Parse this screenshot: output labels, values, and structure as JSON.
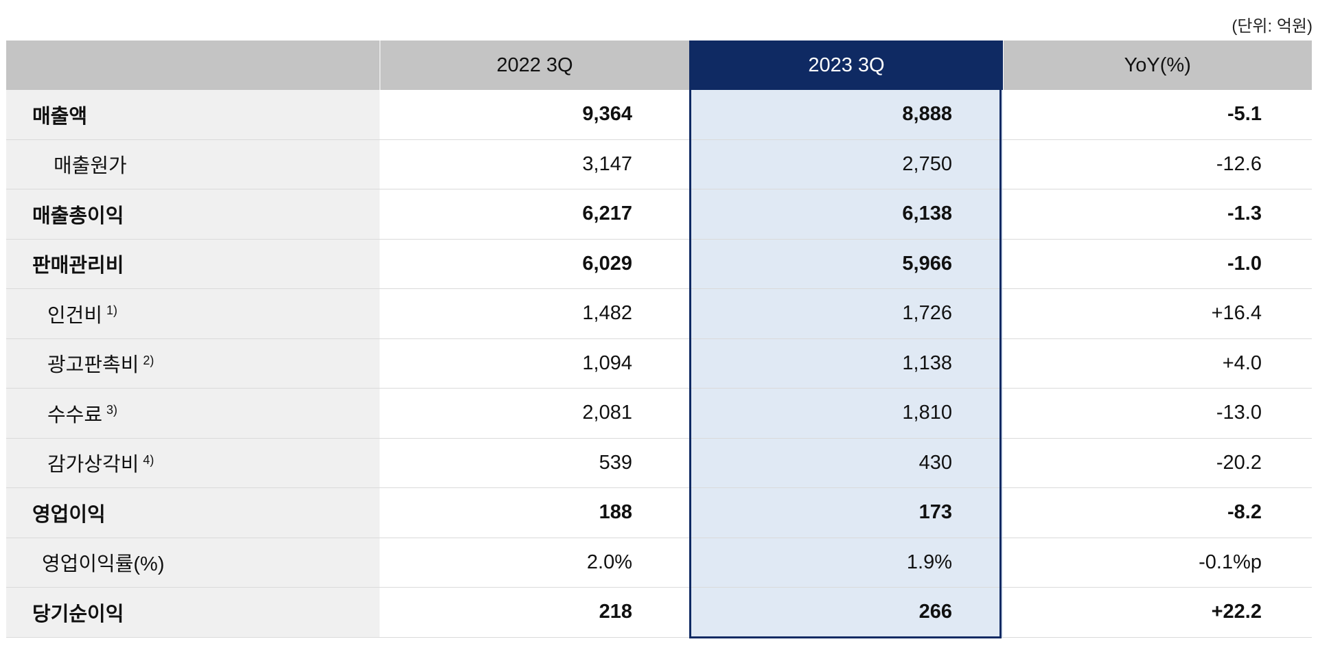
{
  "unit_label": "(단위: 억원)",
  "columns": [
    "",
    "2022 3Q",
    "2023 3Q",
    "YoY(%)"
  ],
  "rows": [
    {
      "label": "매출액",
      "note": "",
      "y2022": "9,364",
      "y2023": "8,888",
      "yoy": "-5.1"
    },
    {
      "label": "매출원가",
      "note": "",
      "y2022": "3,147",
      "y2023": "2,750",
      "yoy": "-12.6"
    },
    {
      "label": "매출총이익",
      "note": "",
      "y2022": "6,217",
      "y2023": "6,138",
      "yoy": "-1.3"
    },
    {
      "label": "판매관리비",
      "note": "",
      "y2022": "6,029",
      "y2023": "5,966",
      "yoy": "-1.0"
    },
    {
      "label": "인건비",
      "note": "1)",
      "y2022": "1,482",
      "y2023": "1,726",
      "yoy": "+16.4"
    },
    {
      "label": "광고판촉비",
      "note": "2)",
      "y2022": "1,094",
      "y2023": "1,138",
      "yoy": "+4.0"
    },
    {
      "label": "수수료",
      "note": "3)",
      "y2022": "2,081",
      "y2023": "1,810",
      "yoy": "-13.0"
    },
    {
      "label": "감가상각비",
      "note": "4)",
      "y2022": "539",
      "y2023": "430",
      "yoy": "-20.2"
    },
    {
      "label": "영업이익",
      "note": "",
      "y2022": "188",
      "y2023": "173",
      "yoy": "-8.2"
    },
    {
      "label": "영업이익률(%)",
      "note": "",
      "y2022": "2.0%",
      "y2023": "1.9%",
      "yoy": "-0.1%p"
    },
    {
      "label": "당기순이익",
      "note": "",
      "y2022": "218",
      "y2023": "266",
      "yoy": "+22.2"
    }
  ],
  "colors": {
    "header_bg": "#c4c4c4",
    "highlight_header_bg": "#0f2a63",
    "highlight_column_bg": "#e0e9f4",
    "label_column_bg": "#f0f0f0"
  }
}
